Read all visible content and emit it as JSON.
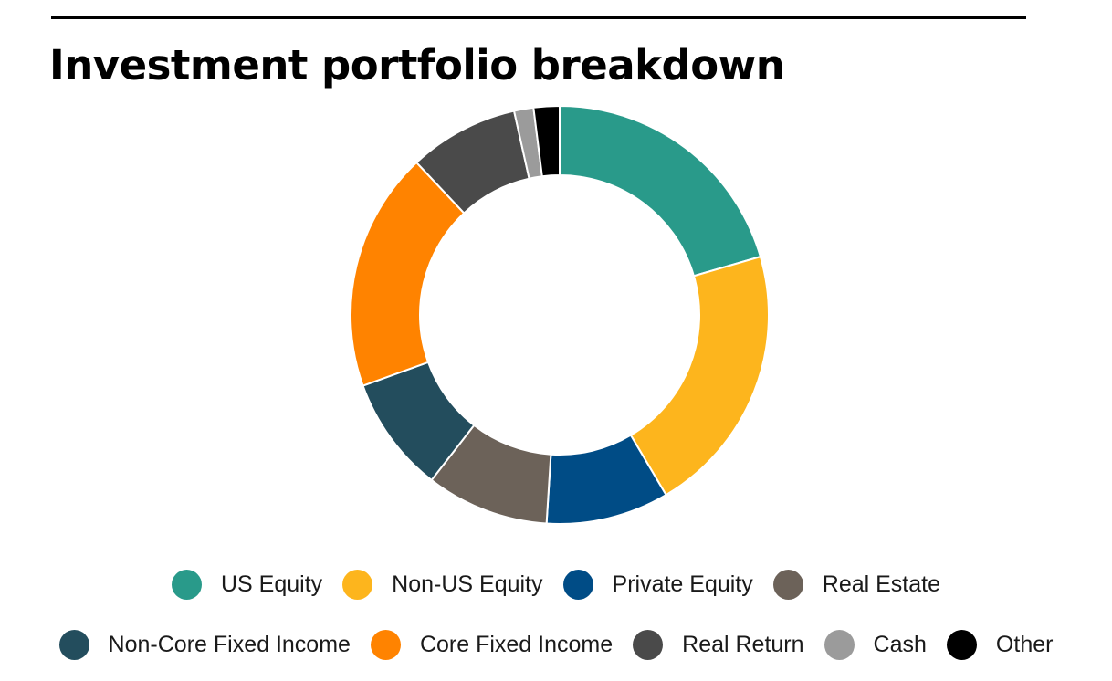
{
  "chart_data": {
    "type": "pie",
    "title": "Investment portfolio breakdown",
    "donut": true,
    "legend_position": "bottom",
    "categories": [
      "US Equity",
      "Non-US Equity",
      "Private Equity",
      "Real Estate",
      "Non-Core Fixed Income",
      "Core Fixed Income",
      "Real Return",
      "Cash",
      "Other"
    ],
    "values": [
      20.5,
      21.0,
      9.5,
      9.5,
      9.0,
      18.5,
      8.5,
      1.5,
      2.0
    ],
    "colors": [
      "#299a8a",
      "#fdb51d",
      "#004c86",
      "#6c6259",
      "#234d5d",
      "#ff8300",
      "#4a4a4a",
      "#9b9b9b",
      "#000000"
    ],
    "legend_rows": [
      [
        0,
        1,
        2,
        3
      ],
      [
        4,
        5,
        6,
        7,
        8
      ]
    ]
  }
}
